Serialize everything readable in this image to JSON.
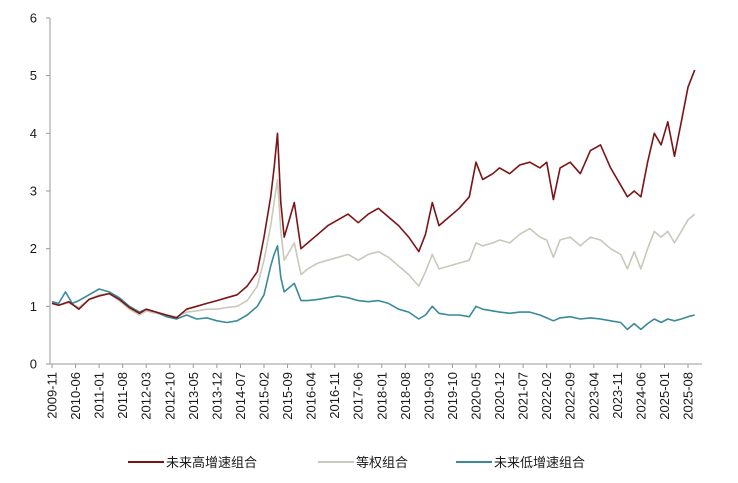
{
  "chart_data": {
    "type": "line",
    "title": "",
    "xlabel": "",
    "ylabel": "",
    "ylim": [
      0,
      6
    ],
    "yticks": [
      "0",
      "1",
      "2",
      "3",
      "4",
      "5",
      "6"
    ],
    "x_ticks": [
      "2009-11",
      "2010-06",
      "2011-01",
      "2011-08",
      "2012-03",
      "2012-10",
      "2013-05",
      "2013-12",
      "2014-07",
      "2015-02",
      "2015-09",
      "2016-04",
      "2016-11",
      "2017-06",
      "2018-01",
      "2018-08",
      "2019-03",
      "2019-10",
      "2020-05",
      "2020-12",
      "2021-07",
      "2022-02",
      "2022-09",
      "2023-04",
      "2023-11",
      "2024-06",
      "2025-01",
      "2025-08"
    ],
    "grid": false,
    "legend_position": "bottom",
    "series": [
      {
        "name": "未来高增速组合",
        "color": "#7b1416",
        "points": [
          [
            "2009-11",
            1.05
          ],
          [
            "2010-01",
            1.02
          ],
          [
            "2010-04",
            1.08
          ],
          [
            "2010-07",
            0.95
          ],
          [
            "2010-10",
            1.12
          ],
          [
            "2011-01",
            1.18
          ],
          [
            "2011-04",
            1.22
          ],
          [
            "2011-07",
            1.12
          ],
          [
            "2011-10",
            0.98
          ],
          [
            "2012-01",
            0.88
          ],
          [
            "2012-03",
            0.95
          ],
          [
            "2012-06",
            0.9
          ],
          [
            "2012-09",
            0.85
          ],
          [
            "2012-12",
            0.8
          ],
          [
            "2013-03",
            0.95
          ],
          [
            "2013-06",
            1.0
          ],
          [
            "2013-09",
            1.05
          ],
          [
            "2013-12",
            1.1
          ],
          [
            "2014-03",
            1.15
          ],
          [
            "2014-06",
            1.2
          ],
          [
            "2014-09",
            1.35
          ],
          [
            "2014-12",
            1.6
          ],
          [
            "2015-02",
            2.2
          ],
          [
            "2015-04",
            2.9
          ],
          [
            "2015-05",
            3.4
          ],
          [
            "2015-06",
            4.0
          ],
          [
            "2015-07",
            2.8
          ],
          [
            "2015-08",
            2.2
          ],
          [
            "2015-09",
            2.4
          ],
          [
            "2015-11",
            2.8
          ],
          [
            "2016-01",
            2.0
          ],
          [
            "2016-03",
            2.1
          ],
          [
            "2016-06",
            2.25
          ],
          [
            "2016-09",
            2.4
          ],
          [
            "2016-12",
            2.5
          ],
          [
            "2017-03",
            2.6
          ],
          [
            "2017-06",
            2.45
          ],
          [
            "2017-09",
            2.6
          ],
          [
            "2017-12",
            2.7
          ],
          [
            "2018-03",
            2.55
          ],
          [
            "2018-06",
            2.4
          ],
          [
            "2018-09",
            2.2
          ],
          [
            "2018-12",
            1.95
          ],
          [
            "2019-02",
            2.25
          ],
          [
            "2019-04",
            2.8
          ],
          [
            "2019-06",
            2.4
          ],
          [
            "2019-09",
            2.55
          ],
          [
            "2019-12",
            2.7
          ],
          [
            "2020-03",
            2.9
          ],
          [
            "2020-05",
            3.5
          ],
          [
            "2020-07",
            3.2
          ],
          [
            "2020-10",
            3.3
          ],
          [
            "2020-12",
            3.4
          ],
          [
            "2021-03",
            3.3
          ],
          [
            "2021-06",
            3.45
          ],
          [
            "2021-09",
            3.5
          ],
          [
            "2021-12",
            3.4
          ],
          [
            "2022-02",
            3.5
          ],
          [
            "2022-04",
            2.85
          ],
          [
            "2022-06",
            3.4
          ],
          [
            "2022-09",
            3.5
          ],
          [
            "2022-12",
            3.3
          ],
          [
            "2023-03",
            3.7
          ],
          [
            "2023-06",
            3.8
          ],
          [
            "2023-09",
            3.4
          ],
          [
            "2023-12",
            3.1
          ],
          [
            "2024-02",
            2.9
          ],
          [
            "2024-04",
            3.0
          ],
          [
            "2024-06",
            2.9
          ],
          [
            "2024-08",
            3.5
          ],
          [
            "2024-10",
            4.0
          ],
          [
            "2024-12",
            3.8
          ],
          [
            "2025-02",
            4.2
          ],
          [
            "2025-04",
            3.6
          ],
          [
            "2025-06",
            4.2
          ],
          [
            "2025-08",
            4.8
          ],
          [
            "2025-10",
            5.1
          ]
        ]
      },
      {
        "name": "等权组合",
        "color": "#c9c8bb",
        "points": [
          [
            "2009-11",
            1.05
          ],
          [
            "2010-01",
            1.02
          ],
          [
            "2010-04",
            1.06
          ],
          [
            "2010-07",
            0.98
          ],
          [
            "2010-10",
            1.12
          ],
          [
            "2011-01",
            1.2
          ],
          [
            "2011-04",
            1.22
          ],
          [
            "2011-07",
            1.1
          ],
          [
            "2011-10",
            0.95
          ],
          [
            "2012-01",
            0.85
          ],
          [
            "2012-03",
            0.92
          ],
          [
            "2012-06",
            0.88
          ],
          [
            "2012-09",
            0.85
          ],
          [
            "2012-12",
            0.82
          ],
          [
            "2013-03",
            0.9
          ],
          [
            "2013-06",
            0.92
          ],
          [
            "2013-09",
            0.95
          ],
          [
            "2013-12",
            0.95
          ],
          [
            "2014-03",
            0.98
          ],
          [
            "2014-06",
            1.0
          ],
          [
            "2014-09",
            1.1
          ],
          [
            "2014-12",
            1.35
          ],
          [
            "2015-02",
            1.8
          ],
          [
            "2015-04",
            2.4
          ],
          [
            "2015-05",
            2.8
          ],
          [
            "2015-06",
            3.2
          ],
          [
            "2015-07",
            2.3
          ],
          [
            "2015-08",
            1.8
          ],
          [
            "2015-09",
            1.9
          ],
          [
            "2015-11",
            2.1
          ],
          [
            "2016-01",
            1.55
          ],
          [
            "2016-03",
            1.65
          ],
          [
            "2016-06",
            1.75
          ],
          [
            "2016-09",
            1.8
          ],
          [
            "2016-12",
            1.85
          ],
          [
            "2017-03",
            1.9
          ],
          [
            "2017-06",
            1.8
          ],
          [
            "2017-09",
            1.9
          ],
          [
            "2017-12",
            1.95
          ],
          [
            "2018-03",
            1.85
          ],
          [
            "2018-06",
            1.7
          ],
          [
            "2018-09",
            1.55
          ],
          [
            "2018-12",
            1.35
          ],
          [
            "2019-02",
            1.6
          ],
          [
            "2019-04",
            1.9
          ],
          [
            "2019-06",
            1.65
          ],
          [
            "2019-09",
            1.7
          ],
          [
            "2019-12",
            1.75
          ],
          [
            "2020-03",
            1.8
          ],
          [
            "2020-05",
            2.1
          ],
          [
            "2020-07",
            2.05
          ],
          [
            "2020-10",
            2.1
          ],
          [
            "2020-12",
            2.15
          ],
          [
            "2021-03",
            2.1
          ],
          [
            "2021-06",
            2.25
          ],
          [
            "2021-09",
            2.35
          ],
          [
            "2021-12",
            2.2
          ],
          [
            "2022-02",
            2.15
          ],
          [
            "2022-04",
            1.85
          ],
          [
            "2022-06",
            2.15
          ],
          [
            "2022-09",
            2.2
          ],
          [
            "2022-12",
            2.05
          ],
          [
            "2023-03",
            2.2
          ],
          [
            "2023-06",
            2.15
          ],
          [
            "2023-09",
            2.0
          ],
          [
            "2023-12",
            1.9
          ],
          [
            "2024-02",
            1.65
          ],
          [
            "2024-04",
            1.95
          ],
          [
            "2024-06",
            1.65
          ],
          [
            "2024-08",
            2.0
          ],
          [
            "2024-10",
            2.3
          ],
          [
            "2024-12",
            2.2
          ],
          [
            "2025-02",
            2.3
          ],
          [
            "2025-04",
            2.1
          ],
          [
            "2025-06",
            2.3
          ],
          [
            "2025-08",
            2.5
          ],
          [
            "2025-10",
            2.6
          ]
        ]
      },
      {
        "name": "未来低增速组合",
        "color": "#3a8a9a",
        "points": [
          [
            "2009-11",
            1.08
          ],
          [
            "2010-01",
            1.05
          ],
          [
            "2010-03",
            1.25
          ],
          [
            "2010-05",
            1.05
          ],
          [
            "2010-07",
            1.1
          ],
          [
            "2010-10",
            1.2
          ],
          [
            "2011-01",
            1.3
          ],
          [
            "2011-04",
            1.25
          ],
          [
            "2011-07",
            1.15
          ],
          [
            "2011-10",
            1.0
          ],
          [
            "2012-01",
            0.9
          ],
          [
            "2012-03",
            0.95
          ],
          [
            "2012-06",
            0.9
          ],
          [
            "2012-09",
            0.82
          ],
          [
            "2012-12",
            0.78
          ],
          [
            "2013-03",
            0.85
          ],
          [
            "2013-06",
            0.78
          ],
          [
            "2013-09",
            0.8
          ],
          [
            "2013-12",
            0.75
          ],
          [
            "2014-03",
            0.72
          ],
          [
            "2014-06",
            0.75
          ],
          [
            "2014-09",
            0.85
          ],
          [
            "2014-12",
            1.0
          ],
          [
            "2015-02",
            1.2
          ],
          [
            "2015-04",
            1.7
          ],
          [
            "2015-05",
            1.9
          ],
          [
            "2015-06",
            2.05
          ],
          [
            "2015-07",
            1.5
          ],
          [
            "2015-08",
            1.25
          ],
          [
            "2015-09",
            1.3
          ],
          [
            "2015-11",
            1.4
          ],
          [
            "2016-01",
            1.1
          ],
          [
            "2016-03",
            1.1
          ],
          [
            "2016-06",
            1.12
          ],
          [
            "2016-09",
            1.15
          ],
          [
            "2016-12",
            1.18
          ],
          [
            "2017-03",
            1.15
          ],
          [
            "2017-06",
            1.1
          ],
          [
            "2017-09",
            1.08
          ],
          [
            "2017-12",
            1.1
          ],
          [
            "2018-03",
            1.05
          ],
          [
            "2018-06",
            0.95
          ],
          [
            "2018-09",
            0.9
          ],
          [
            "2018-12",
            0.78
          ],
          [
            "2019-02",
            0.85
          ],
          [
            "2019-04",
            1.0
          ],
          [
            "2019-06",
            0.88
          ],
          [
            "2019-09",
            0.85
          ],
          [
            "2019-12",
            0.85
          ],
          [
            "2020-03",
            0.82
          ],
          [
            "2020-05",
            1.0
          ],
          [
            "2020-07",
            0.95
          ],
          [
            "2020-10",
            0.92
          ],
          [
            "2020-12",
            0.9
          ],
          [
            "2021-03",
            0.88
          ],
          [
            "2021-06",
            0.9
          ],
          [
            "2021-09",
            0.9
          ],
          [
            "2021-12",
            0.85
          ],
          [
            "2022-02",
            0.8
          ],
          [
            "2022-04",
            0.75
          ],
          [
            "2022-06",
            0.8
          ],
          [
            "2022-09",
            0.82
          ],
          [
            "2022-12",
            0.78
          ],
          [
            "2023-03",
            0.8
          ],
          [
            "2023-06",
            0.78
          ],
          [
            "2023-09",
            0.75
          ],
          [
            "2023-12",
            0.72
          ],
          [
            "2024-02",
            0.6
          ],
          [
            "2024-04",
            0.7
          ],
          [
            "2024-06",
            0.6
          ],
          [
            "2024-08",
            0.7
          ],
          [
            "2024-10",
            0.78
          ],
          [
            "2024-12",
            0.72
          ],
          [
            "2025-02",
            0.78
          ],
          [
            "2025-04",
            0.75
          ],
          [
            "2025-06",
            0.78
          ],
          [
            "2025-08",
            0.82
          ],
          [
            "2025-10",
            0.85
          ]
        ]
      }
    ]
  }
}
